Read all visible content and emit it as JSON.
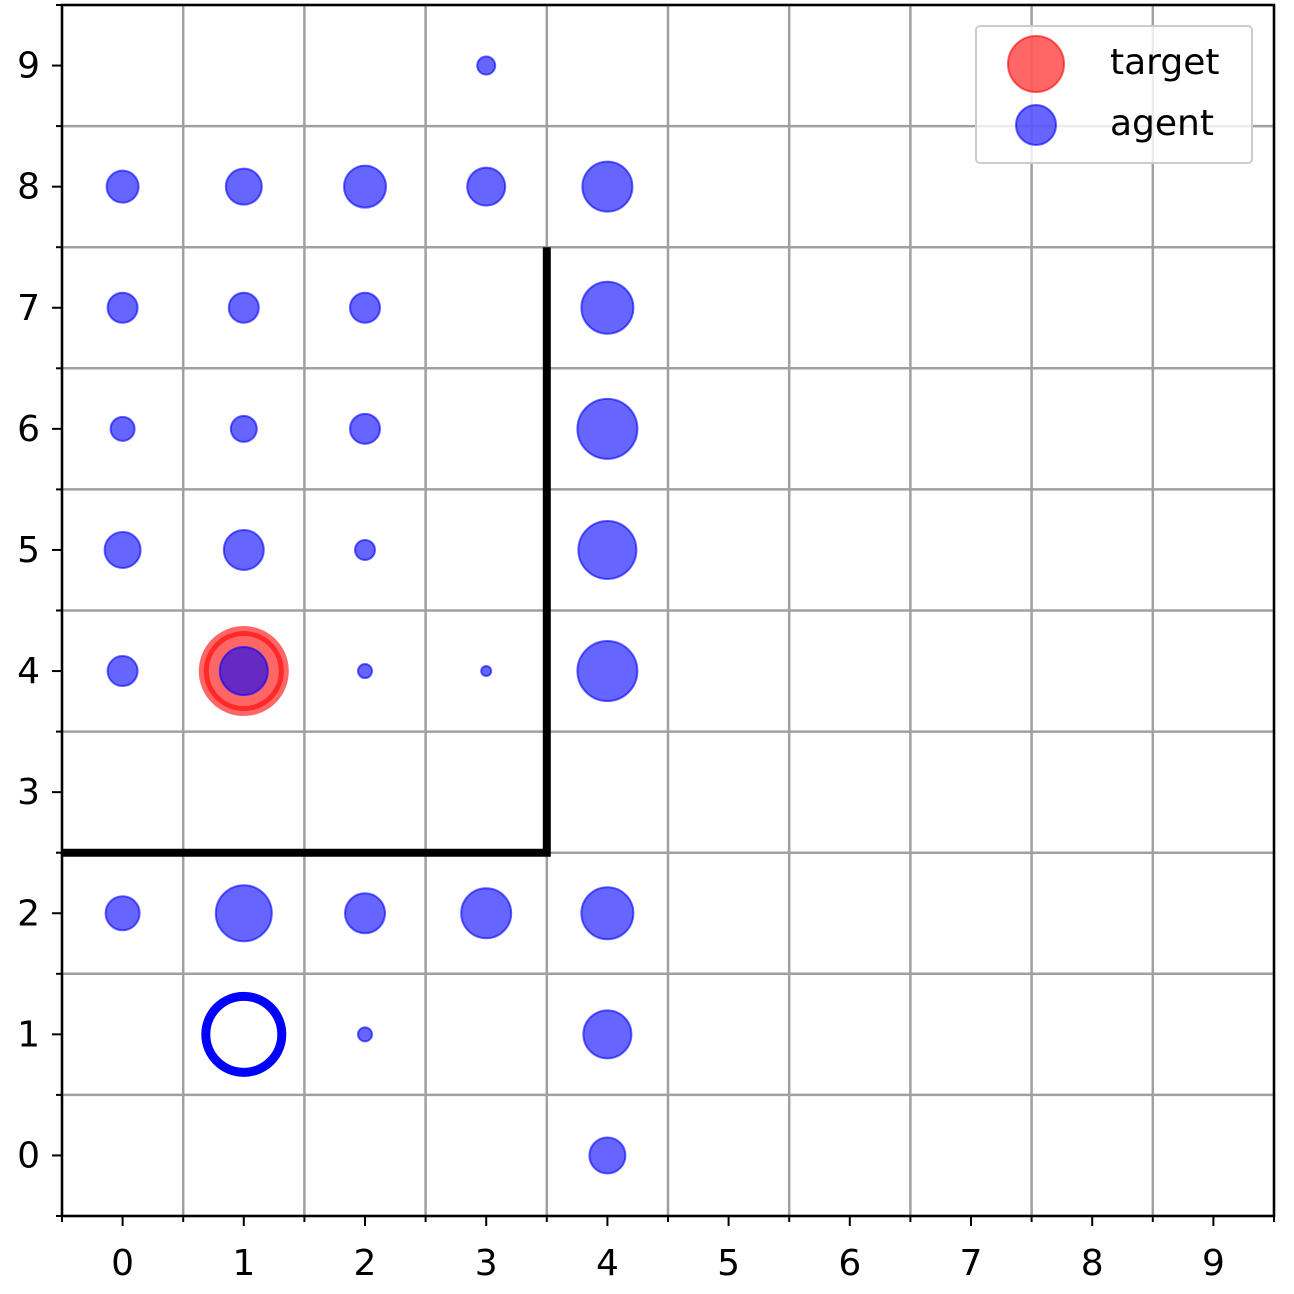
{
  "chart_data": {
    "type": "scatter",
    "xlim": [
      -0.5,
      9.5
    ],
    "ylim": [
      -0.5,
      9.5
    ],
    "xticks": [
      0,
      1,
      2,
      3,
      4,
      5,
      6,
      7,
      8,
      9
    ],
    "yticks": [
      0,
      1,
      2,
      3,
      4,
      5,
      6,
      7,
      8,
      9
    ],
    "xminorticks": [
      -0.5,
      0.5,
      1.5,
      2.5,
      3.5,
      4.5,
      5.5,
      6.5,
      7.5,
      8.5,
      9.5
    ],
    "yminorticks": [
      -0.5,
      0.5,
      1.5,
      2.5,
      3.5,
      4.5,
      5.5,
      6.5,
      7.5,
      8.5,
      9.5
    ],
    "grid": true,
    "legend": "upper right",
    "series": [
      {
        "name": "target",
        "color": "#ff0000",
        "edge_width": 10,
        "x": [
          1
        ],
        "y": [
          4
        ],
        "sizes": [
          40
        ]
      },
      {
        "name": "agent",
        "color": "#0000ff",
        "edge_width": 2,
        "x": [
          3,
          0,
          1,
          2,
          3,
          4,
          0,
          1,
          2,
          4,
          0,
          1,
          2,
          4,
          0,
          1,
          2,
          4,
          0,
          1,
          2,
          3,
          4,
          0,
          1,
          2,
          3,
          4,
          2,
          4,
          4
        ],
        "y": [
          9,
          8,
          8,
          8,
          8,
          8,
          7,
          7,
          7,
          7,
          6,
          6,
          6,
          6,
          5,
          5,
          5,
          5,
          4,
          4,
          4,
          4,
          4,
          2,
          2,
          2,
          2,
          2,
          1,
          1,
          0
        ],
        "sizes": [
          9,
          16,
          18,
          21,
          19,
          25,
          15,
          15,
          15,
          26,
          12,
          13,
          15,
          30,
          18,
          20,
          10,
          29,
          15,
          24,
          7,
          5,
          30,
          17,
          28,
          20,
          25,
          26,
          7,
          24,
          18
        ]
      }
    ],
    "start_marker": {
      "x": 1,
      "y": 1,
      "size": 38,
      "color": "#0000ff"
    },
    "wall": {
      "x": [
        -0.5,
        3.5,
        3.5
      ],
      "y": [
        2.5,
        2.5,
        7.5
      ],
      "color": "#000000"
    }
  }
}
